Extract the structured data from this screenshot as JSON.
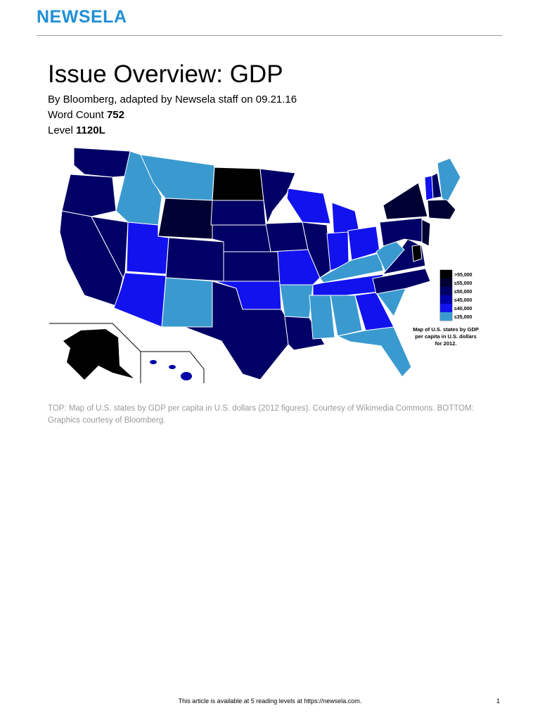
{
  "header": {
    "logo": "NEWSELA"
  },
  "article": {
    "title": "Issue Overview: GDP",
    "byline": "By Bloomberg, adapted by Newsela staff on 09.21.16",
    "word_count_label": "Word Count",
    "word_count": "752",
    "level_label": "Level",
    "level": "1120L"
  },
  "map": {
    "legend": [
      {
        "label": ">55,000",
        "color": "#000000"
      },
      {
        "label": "≤55,000",
        "color": "#000033"
      },
      {
        "label": "≤50,000",
        "color": "#000066"
      },
      {
        "label": "≤45,000",
        "color": "#0000a8"
      },
      {
        "label": "≤40,000",
        "color": "#1212ee"
      },
      {
        "label": "≤35,000",
        "color": "#3a9ad0"
      }
    ],
    "caption": [
      "Map of U.S. states by GDP",
      "per capita in U.S. dollars",
      "for 2012."
    ]
  },
  "figure_caption": "TOP: Map of U.S. states by GDP per capita in U.S. dollars (2012 figures). Courtesy of Wikimedia Commons. BOTTOM: Graphics courtesy of Bloomberg.",
  "footer": {
    "note": "This article is available at 5 reading levels at https://newsela.com.",
    "page": "1"
  }
}
